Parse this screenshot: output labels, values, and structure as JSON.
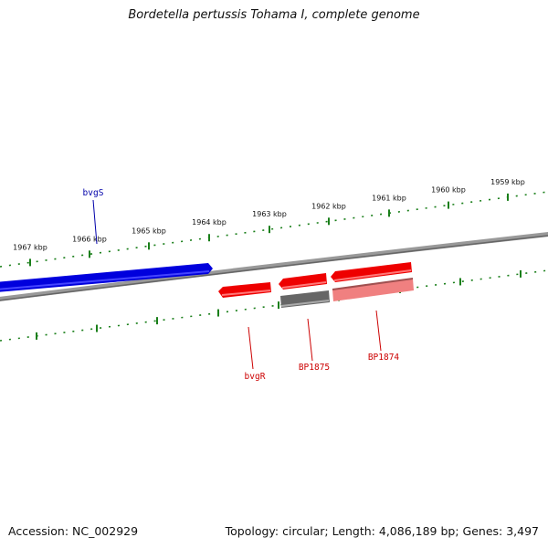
{
  "title": "Bordetella pertussis Tohama I, complete genome",
  "footer": {
    "accession": "Accession: NC_002929",
    "summary": "Topology: circular; Length: 4,086,189 bp; Genes: 3,497"
  },
  "ruler": {
    "ticks": [
      "1967 kbp",
      "1966 kbp",
      "1965 kbp",
      "1964 kbp",
      "1963 kbp",
      "1962 kbp",
      "1961 kbp",
      "1960 kbp",
      "1959 kbp"
    ]
  },
  "genes": {
    "bvgS": "bvgS",
    "bvgR": "bvgR",
    "BP1875": "BP1875",
    "BP1874": "BP1874"
  },
  "colors": {
    "forward_strand": "#0000dd",
    "reverse_strand": "#ee0000",
    "pseudo_light": "#f08080",
    "other": "#666666",
    "backbone": "#777777",
    "ruler": "#1a7f1a",
    "label_fwd": "#0000aa",
    "label_rev": "#cc0000"
  }
}
